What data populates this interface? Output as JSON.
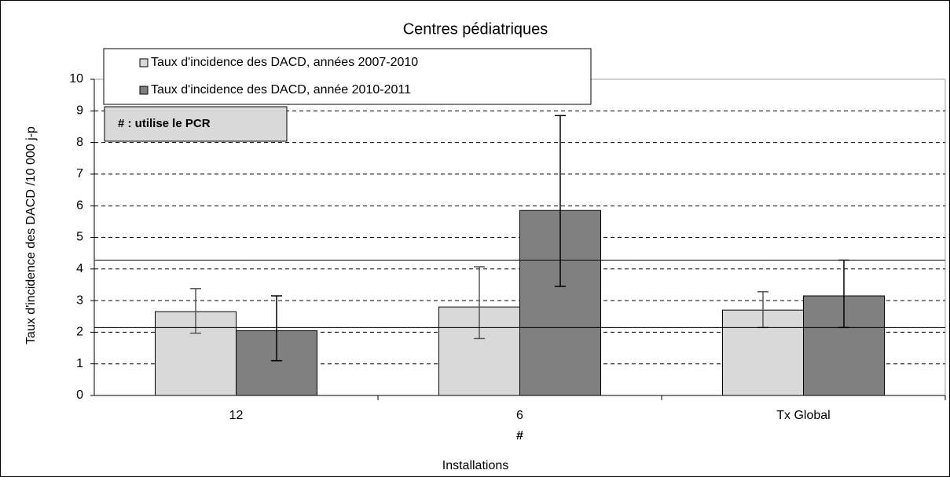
{
  "chart_data": {
    "type": "bar",
    "title": "Centres pédiatriques",
    "x_label": "Installations",
    "y_label": "Taux d'incidence des DACD /10 000 j-p",
    "categories": [
      "12",
      "6",
      "Tx Global"
    ],
    "category_annotations": [
      null,
      "#",
      null
    ],
    "annotation": "# : utilise le PCR",
    "series": [
      {
        "name": "Taux d'incidence des DACD, années 2007-2010",
        "color": "#d9d9d9",
        "values": [
          2.65,
          2.8,
          2.7
        ],
        "error_low": [
          1.97,
          1.8,
          2.15
        ],
        "error_high": [
          3.38,
          4.07,
          3.28
        ]
      },
      {
        "name": "Taux d'incidence des DACD, année 2010-2011",
        "color": "#808080",
        "values": [
          2.05,
          5.85,
          3.15
        ],
        "error_low": [
          1.1,
          3.45,
          2.15
        ],
        "error_high": [
          3.15,
          8.85,
          4.28
        ]
      }
    ],
    "reference_lines": [
      4.28,
      2.15
    ],
    "ylim": [
      0,
      10
    ],
    "yticks": [
      0,
      1,
      2,
      3,
      4,
      5,
      6,
      7,
      8,
      9,
      10
    ],
    "grid": true
  }
}
